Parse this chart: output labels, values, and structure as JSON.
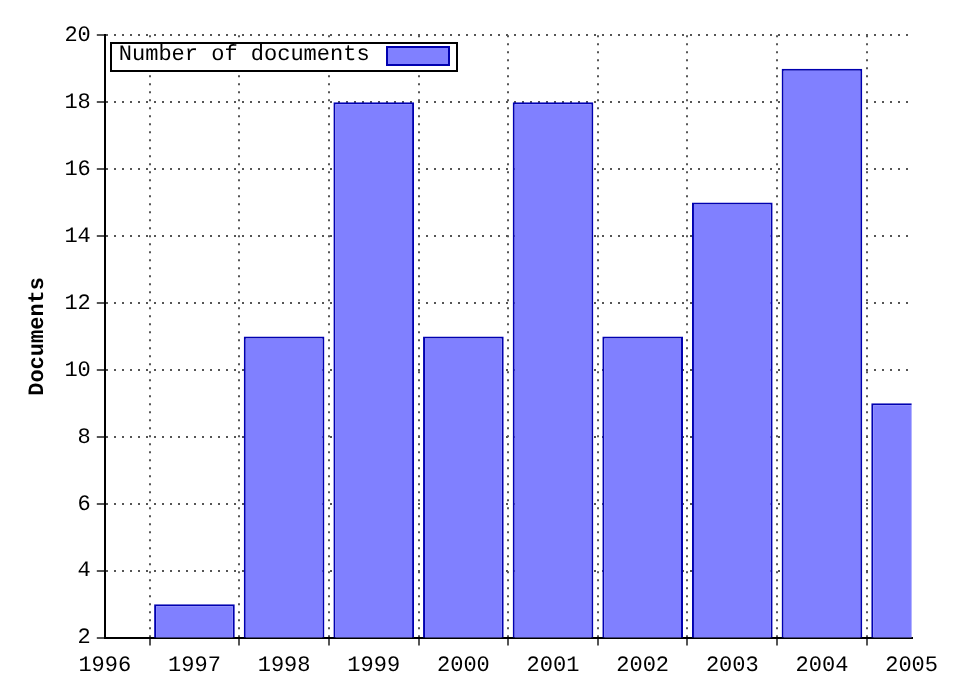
{
  "chart_data": {
    "type": "bar",
    "ylabel": "Documents",
    "x": [
      1997,
      1998,
      1999,
      2000,
      2001,
      2002,
      2003,
      2004,
      2005
    ],
    "series": [
      {
        "name": "Number of documents",
        "color": "#8080ff",
        "values": [
          3,
          11,
          18,
          11,
          18,
          11,
          15,
          19,
          9
        ]
      }
    ],
    "xlim": [
      1996,
      2005
    ],
    "xticks": [
      1996,
      1997,
      1998,
      1999,
      2000,
      2001,
      2002,
      2003,
      2004,
      2005
    ],
    "ylim": [
      2,
      20
    ],
    "yticks": [
      2,
      4,
      6,
      8,
      10,
      12,
      14,
      16,
      18,
      20
    ],
    "grid": true,
    "legend": "top left"
  }
}
